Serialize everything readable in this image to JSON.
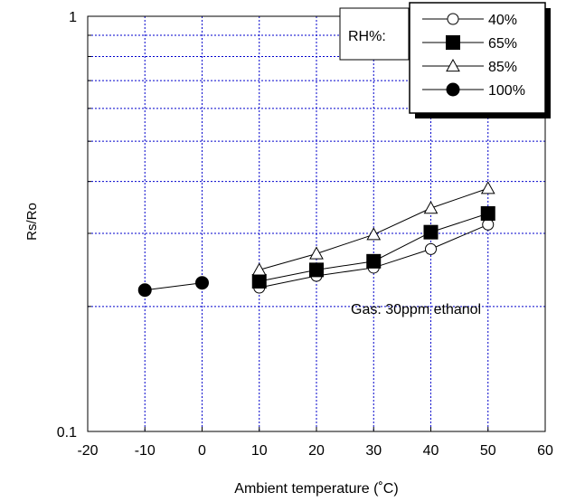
{
  "chart_data": {
    "type": "line",
    "title": "",
    "xlabel": "Ambient temperature (˚C)",
    "ylabel": "Rs/Ro",
    "xlim": [
      -20,
      60
    ],
    "ylim": [
      0.1,
      1
    ],
    "yscale": "log",
    "x_ticks": [
      -20,
      -10,
      0,
      10,
      20,
      30,
      40,
      50,
      60
    ],
    "x_tick_labels": [
      "-20",
      "-10",
      "0",
      "10",
      "20",
      "30",
      "40",
      "50",
      "60"
    ],
    "y_tick_labels": [
      "0.1",
      "1"
    ],
    "grid": true,
    "grid_color": "#0000cc",
    "legend_title": "RH%:",
    "legend_position": "top-right",
    "annotation": "Gas: 30ppm ethanol",
    "series": [
      {
        "name": "40%",
        "marker": "open-circle",
        "x": [
          10,
          20,
          30,
          40,
          50
        ],
        "y": [
          0.222,
          0.237,
          0.248,
          0.275,
          0.315
        ]
      },
      {
        "name": "65%",
        "marker": "filled-square",
        "x": [
          10,
          20,
          30,
          40,
          50
        ],
        "y": [
          0.23,
          0.245,
          0.257,
          0.302,
          0.335
        ]
      },
      {
        "name": "85%",
        "marker": "open-triangle",
        "x": [
          10,
          20,
          30,
          40,
          50
        ],
        "y": [
          0.245,
          0.268,
          0.298,
          0.345,
          0.385
        ]
      },
      {
        "name": "100%",
        "marker": "filled-circle",
        "x": [
          -10,
          0
        ],
        "y": [
          0.219,
          0.228
        ]
      }
    ]
  }
}
